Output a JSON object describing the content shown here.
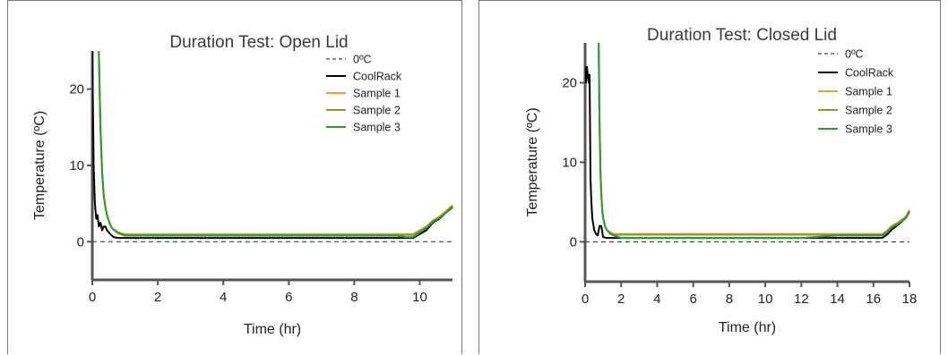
{
  "chart_data": [
    {
      "type": "line",
      "title": "Duration Test: Open Lid",
      "xlabel": "Time (hr)",
      "ylabel": "Temperature (ºC)",
      "xlim": [
        0,
        11
      ],
      "ylim": [
        -5,
        25
      ],
      "xticks": [
        0,
        2,
        4,
        6,
        8,
        10
      ],
      "yticks": [
        0,
        10,
        20
      ],
      "grid": false,
      "legend_position": "top-right",
      "reference_line": {
        "name": "0ºC",
        "y": 0,
        "color": "#444444",
        "style": "dashed"
      },
      "series": [
        {
          "name": "CoolRack",
          "color": "#000000",
          "x": [
            0,
            0.04,
            0.08,
            0.12,
            0.16,
            0.2,
            0.25,
            0.3,
            0.35,
            0.4,
            0.45,
            0.55,
            0.65,
            0.8,
            2,
            4,
            6,
            8,
            9.4,
            9.6,
            9.8,
            10,
            10.2,
            10.4,
            10.6,
            10.8,
            11
          ],
          "y": [
            25,
            10,
            5,
            3,
            3.5,
            2,
            2.5,
            1.5,
            2,
            2,
            1.5,
            1,
            0.6,
            0.5,
            0.5,
            0.5,
            0.5,
            0.5,
            0.5,
            0.5,
            0.5,
            1,
            1.5,
            2.5,
            3,
            3.8,
            4.5
          ]
        },
        {
          "name": "Sample 1",
          "color": "#F39C32",
          "x": [
            0.2,
            0.25,
            0.3,
            0.35,
            0.4,
            0.45,
            0.5,
            0.55,
            0.6,
            0.7,
            0.8,
            1,
            2,
            4,
            6,
            8,
            9.3,
            9.6,
            9.8,
            10,
            10.2,
            10.4,
            10.6,
            10.8,
            11
          ],
          "y": [
            25,
            15,
            9,
            6,
            4.5,
            3.5,
            2.8,
            2.2,
            1.8,
            1.5,
            1.2,
            1,
            1,
            1,
            1,
            1,
            1,
            1,
            1,
            1.5,
            2,
            2.8,
            3.3,
            4,
            4.8
          ]
        },
        {
          "name": "Sample 2",
          "color": "#8A9A2A",
          "x": [
            0.2,
            0.25,
            0.3,
            0.35,
            0.4,
            0.45,
            0.5,
            0.55,
            0.6,
            0.7,
            0.8,
            1,
            2,
            4,
            6,
            8,
            9.3,
            9.6,
            9.8,
            10,
            10.2,
            10.4,
            10.6,
            10.8,
            11
          ],
          "y": [
            25,
            15,
            9,
            6,
            4.5,
            3.5,
            2.8,
            2.2,
            1.8,
            1.5,
            1.2,
            0.9,
            0.9,
            0.9,
            0.9,
            0.9,
            0.9,
            0.9,
            0.9,
            1.4,
            1.9,
            2.7,
            3.2,
            3.9,
            4.7
          ]
        },
        {
          "name": "Sample 3",
          "color": "#2E9B30",
          "x": [
            0.2,
            0.25,
            0.3,
            0.35,
            0.4,
            0.45,
            0.5,
            0.55,
            0.6,
            0.7,
            0.8,
            1,
            2,
            4,
            6,
            8,
            9.3,
            9.6,
            9.8,
            10,
            10.2,
            10.4,
            10.6,
            10.8,
            11
          ],
          "y": [
            25,
            15,
            9,
            6,
            4.5,
            3.5,
            2.8,
            2.2,
            1.8,
            1.4,
            1.1,
            0.8,
            0.8,
            0.8,
            0.8,
            0.8,
            0.8,
            0.6,
            0.6,
            1.2,
            1.8,
            2.6,
            3.1,
            3.8,
            4.6
          ]
        }
      ]
    },
    {
      "type": "line",
      "title": "Duration Test: Closed Lid",
      "xlabel": "Time (hr)",
      "ylabel": "Temperature (ºC)",
      "xlim": [
        0,
        18
      ],
      "ylim": [
        -5,
        25
      ],
      "xticks": [
        0,
        2,
        4,
        6,
        8,
        10,
        12,
        14,
        16,
        18
      ],
      "yticks": [
        0,
        10,
        20
      ],
      "grid": false,
      "legend_position": "top-right",
      "reference_line": {
        "name": "0ºC",
        "y": 0,
        "color": "#444444",
        "style": "dashed"
      },
      "series": [
        {
          "name": "CoolRack",
          "color": "#000000",
          "x": [
            0,
            0.05,
            0.1,
            0.15,
            0.2,
            0.25,
            0.3,
            0.35,
            0.4,
            0.5,
            0.6,
            0.7,
            0.8,
            0.9,
            1,
            1.2,
            2,
            4,
            6,
            8,
            10,
            12,
            14,
            16,
            16.5,
            16.8,
            17,
            17.4,
            17.8,
            18
          ],
          "y": [
            22,
            20,
            22,
            21,
            20,
            21,
            8,
            5,
            3,
            1.5,
            1,
            0.8,
            2,
            2,
            0.6,
            0.5,
            0.5,
            0.5,
            0.5,
            0.5,
            0.5,
            0.5,
            0.5,
            0.5,
            0.5,
            1,
            1.5,
            2.2,
            3,
            3.8
          ]
        },
        {
          "name": "Sample 1",
          "color": "#F39C32",
          "x": [
            0.75,
            0.8,
            0.85,
            0.9,
            0.95,
            1,
            1.1,
            1.2,
            1.4,
            1.6,
            2,
            4,
            6,
            8,
            10,
            12,
            14,
            16,
            16.5,
            16.8,
            17,
            17.4,
            17.8,
            18
          ],
          "y": [
            25,
            15,
            9,
            6,
            4,
            3,
            2,
            1.5,
            1.2,
            1,
            1,
            1,
            1,
            1,
            1,
            1,
            1,
            1,
            1,
            1.5,
            2,
            2.5,
            3.2,
            4
          ]
        },
        {
          "name": "Sample 2",
          "color": "#8A9A2A",
          "x": [
            0.75,
            0.8,
            0.85,
            0.9,
            0.95,
            1,
            1.1,
            1.2,
            1.4,
            1.6,
            2,
            4,
            6,
            8,
            10,
            12,
            14,
            16,
            16.5,
            16.8,
            17,
            17.4,
            17.8,
            18
          ],
          "y": [
            25,
            15,
            9,
            6,
            4,
            3,
            2,
            1.5,
            1.1,
            0.9,
            0.9,
            0.9,
            0.9,
            0.9,
            0.9,
            0.9,
            0.9,
            0.9,
            0.9,
            1.4,
            1.9,
            2.4,
            3.1,
            3.9
          ]
        },
        {
          "name": "Sample 3",
          "color": "#2E9B30",
          "x": [
            0.75,
            0.8,
            0.85,
            0.9,
            0.95,
            1,
            1.1,
            1.2,
            1.4,
            1.6,
            2,
            4,
            6,
            8,
            10,
            12,
            14,
            16,
            16.5,
            16.8,
            17,
            17.4,
            17.8,
            18
          ],
          "y": [
            25,
            15,
            9,
            6,
            4,
            3,
            2,
            1.5,
            1,
            0.8,
            0.5,
            0.5,
            0.5,
            0.5,
            0.5,
            0.5,
            0.8,
            0.8,
            0.8,
            1.3,
            1.8,
            2.3,
            3,
            3.8
          ]
        }
      ]
    }
  ]
}
